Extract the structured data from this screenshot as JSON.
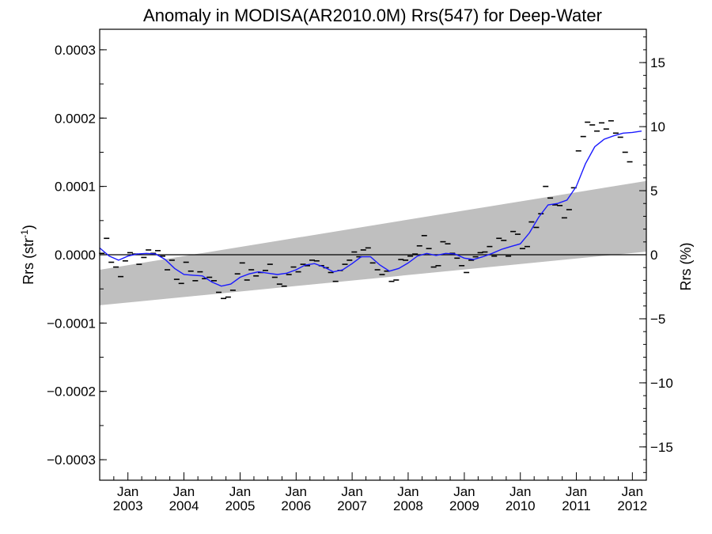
{
  "chart_data": {
    "type": "scatter",
    "title": "Anomaly in MODISA(AR2010.0M) Rrs(547) for Deep-Water",
    "ylabel_left": "Rrs (str",
    "ylabel_left_sup": "-1",
    "ylabel_left_close": ")",
    "ylabel_right": "Rrs (%)",
    "x_range": [
      "2002-07-01",
      "2012-04-01"
    ],
    "ylim_left": [
      -0.00033,
      0.00033
    ],
    "ylim_right": [
      -17.6,
      17.6
    ],
    "left_ticks": [
      {
        "value": 0.0003,
        "label": "0.0003"
      },
      {
        "value": 0.0002,
        "label": "0.0002"
      },
      {
        "value": 0.0001,
        "label": "0.0001"
      },
      {
        "value": 0.0,
        "label": "0.0000"
      },
      {
        "value": -0.0001,
        "label": "−0.0001"
      },
      {
        "value": -0.0002,
        "label": "−0.0002"
      },
      {
        "value": -0.0003,
        "label": "−0.0003"
      }
    ],
    "right_ticks": [
      {
        "value": 15,
        "label": "15"
      },
      {
        "value": 10,
        "label": "10"
      },
      {
        "value": 5,
        "label": "5"
      },
      {
        "value": 0,
        "label": "0"
      },
      {
        "value": -5,
        "label": "−5"
      },
      {
        "value": -10,
        "label": "−10"
      },
      {
        "value": -15,
        "label": "−15"
      }
    ],
    "x_ticks": [
      {
        "date": "2003-01-01",
        "month": "Jan",
        "year": "2003"
      },
      {
        "date": "2004-01-01",
        "month": "Jan",
        "year": "2004"
      },
      {
        "date": "2005-01-01",
        "month": "Jan",
        "year": "2005"
      },
      {
        "date": "2006-01-01",
        "month": "Jan",
        "year": "2006"
      },
      {
        "date": "2007-01-01",
        "month": "Jan",
        "year": "2007"
      },
      {
        "date": "2008-01-01",
        "month": "Jan",
        "year": "2008"
      },
      {
        "date": "2009-01-01",
        "month": "Jan",
        "year": "2009"
      },
      {
        "date": "2010-01-01",
        "month": "Jan",
        "year": "2010"
      },
      {
        "date": "2011-01-01",
        "month": "Jan",
        "year": "2011"
      },
      {
        "date": "2012-01-01",
        "month": "Jan",
        "year": "2012"
      }
    ],
    "band": {
      "start": {
        "date": "2002-07-01",
        "upper": -2.2e-05,
        "lower": -7.4e-05
      },
      "end": {
        "date": "2012-04-01",
        "upper": 0.000108,
        "lower": 4.5e-06
      },
      "color": "#bfbfbf"
    },
    "zero_line": {
      "value": 0.0,
      "color": "#000000"
    },
    "monthly_points": [
      [
        "2002-07-15",
        2e-06
      ],
      [
        "2002-08-15",
        2.4e-05
      ],
      [
        "2002-09-15",
        -1.1e-05
      ],
      [
        "2002-10-15",
        -1.8e-05
      ],
      [
        "2002-11-15",
        -3.2e-05
      ],
      [
        "2002-12-15",
        -9e-06
      ],
      [
        "2003-01-15",
        3e-06
      ],
      [
        "2003-02-15",
        1e-06
      ],
      [
        "2003-03-15",
        -1.4e-05
      ],
      [
        "2003-04-15",
        -4e-06
      ],
      [
        "2003-05-15",
        7e-06
      ],
      [
        "2003-06-15",
        2e-06
      ],
      [
        "2003-07-15",
        6e-06
      ],
      [
        "2003-08-15",
        -2e-06
      ],
      [
        "2003-09-15",
        -2.2e-05
      ],
      [
        "2003-10-15",
        -8e-06
      ],
      [
        "2003-11-15",
        -3.6e-05
      ],
      [
        "2003-12-15",
        -4.2e-05
      ],
      [
        "2004-01-15",
        -1.1e-05
      ],
      [
        "2004-02-15",
        -2.4e-05
      ],
      [
        "2004-03-15",
        -3.8e-05
      ],
      [
        "2004-04-15",
        -2.5e-05
      ],
      [
        "2004-05-15",
        -3.5e-05
      ],
      [
        "2004-06-15",
        -3.3e-05
      ],
      [
        "2004-07-15",
        -3.8e-05
      ],
      [
        "2004-08-15",
        -5.5e-05
      ],
      [
        "2004-09-15",
        -6.4e-05
      ],
      [
        "2004-10-15",
        -6.2e-05
      ],
      [
        "2004-11-15",
        -5.2e-05
      ],
      [
        "2004-12-15",
        -2.8e-05
      ],
      [
        "2005-01-15",
        -1.2e-05
      ],
      [
        "2005-02-15",
        -3.7e-05
      ],
      [
        "2005-03-15",
        -2.2e-05
      ],
      [
        "2005-04-15",
        -3.1e-05
      ],
      [
        "2005-05-15",
        -2.6e-05
      ],
      [
        "2005-06-15",
        -2.3e-05
      ],
      [
        "2005-07-15",
        -1.4e-05
      ],
      [
        "2005-08-15",
        -3.3e-05
      ],
      [
        "2005-09-15",
        -4.3e-05
      ],
      [
        "2005-10-15",
        -4.6e-05
      ],
      [
        "2005-11-15",
        -2.9e-05
      ],
      [
        "2005-12-15",
        -1.8e-05
      ],
      [
        "2006-01-15",
        -2.5e-05
      ],
      [
        "2006-02-15",
        -1.4e-05
      ],
      [
        "2006-03-15",
        -1.6e-05
      ],
      [
        "2006-04-15",
        -8e-06
      ],
      [
        "2006-05-15",
        -9e-06
      ],
      [
        "2006-06-15",
        -1.6e-05
      ],
      [
        "2006-07-15",
        -1.9e-05
      ],
      [
        "2006-08-15",
        -2.6e-05
      ],
      [
        "2006-09-15",
        -3.9e-05
      ],
      [
        "2006-10-15",
        -2.3e-05
      ],
      [
        "2006-11-15",
        -1.4e-05
      ],
      [
        "2006-12-15",
        -8e-06
      ],
      [
        "2007-01-15",
        4e-06
      ],
      [
        "2007-02-15",
        -3e-06
      ],
      [
        "2007-03-15",
        7e-06
      ],
      [
        "2007-04-15",
        1e-05
      ],
      [
        "2007-05-15",
        -1.2e-05
      ],
      [
        "2007-06-15",
        -2.2e-05
      ],
      [
        "2007-07-15",
        -2.9e-05
      ],
      [
        "2007-08-15",
        -2.4e-05
      ],
      [
        "2007-09-15",
        -3.9e-05
      ],
      [
        "2007-10-15",
        -3.7e-05
      ],
      [
        "2007-11-15",
        -7e-06
      ],
      [
        "2007-12-15",
        -8e-06
      ],
      [
        "2008-01-15",
        -2e-06
      ],
      [
        "2008-02-15",
        1e-06
      ],
      [
        "2008-03-15",
        1.3e-05
      ],
      [
        "2008-04-15",
        2.8e-05
      ],
      [
        "2008-05-15",
        9e-06
      ],
      [
        "2008-06-15",
        -1.8e-05
      ],
      [
        "2008-07-15",
        -1.6e-05
      ],
      [
        "2008-08-15",
        1.9e-05
      ],
      [
        "2008-09-15",
        1.6e-05
      ],
      [
        "2008-10-15",
        2e-06
      ],
      [
        "2008-11-15",
        -5e-06
      ],
      [
        "2008-12-15",
        -1.6e-05
      ],
      [
        "2009-01-15",
        -2.6e-05
      ],
      [
        "2009-02-15",
        -8e-06
      ],
      [
        "2009-03-15",
        -3e-06
      ],
      [
        "2009-04-15",
        3e-06
      ],
      [
        "2009-05-15",
        4e-06
      ],
      [
        "2009-06-15",
        1.2e-05
      ],
      [
        "2009-07-15",
        -2e-06
      ],
      [
        "2009-08-15",
        2.4e-05
      ],
      [
        "2009-09-15",
        2.1e-05
      ],
      [
        "2009-10-15",
        -2e-06
      ],
      [
        "2009-11-15",
        3.4e-05
      ],
      [
        "2009-12-15",
        3e-05
      ],
      [
        "2010-01-15",
        9e-06
      ],
      [
        "2010-02-15",
        1.2e-05
      ],
      [
        "2010-03-15",
        4.8e-05
      ],
      [
        "2010-04-15",
        4e-05
      ],
      [
        "2010-05-15",
        6e-05
      ],
      [
        "2010-06-15",
        0.0001
      ],
      [
        "2010-07-15",
        8.3e-05
      ],
      [
        "2010-08-15",
        7.3e-05
      ],
      [
        "2010-09-15",
        7.2e-05
      ],
      [
        "2010-10-15",
        5.4e-05
      ],
      [
        "2010-11-15",
        6.6e-05
      ],
      [
        "2010-12-15",
        9.8e-05
      ],
      [
        "2011-01-15",
        0.000152
      ],
      [
        "2011-02-15",
        0.000173
      ],
      [
        "2011-03-15",
        0.000194
      ],
      [
        "2011-04-15",
        0.00019
      ],
      [
        "2011-05-15",
        0.000181
      ],
      [
        "2011-06-15",
        0.000193
      ],
      [
        "2011-07-15",
        0.000184
      ],
      [
        "2011-08-15",
        0.000196
      ],
      [
        "2011-09-15",
        0.000178
      ],
      [
        "2011-10-15",
        0.000172
      ],
      [
        "2011-11-15",
        0.00015
      ],
      [
        "2011-12-15",
        0.000136
      ]
    ],
    "smoothed_line": {
      "color": "#1a1aff",
      "points": [
        [
          "2002-07-01",
          1e-05
        ],
        [
          "2002-09-01",
          -2e-06
        ],
        [
          "2002-11-01",
          -8e-06
        ],
        [
          "2003-01-01",
          -2e-06
        ],
        [
          "2003-03-01",
          1e-06
        ],
        [
          "2003-05-01",
          2e-06
        ],
        [
          "2003-07-01",
          1e-06
        ],
        [
          "2003-09-01",
          -7e-06
        ],
        [
          "2003-11-01",
          -2e-05
        ],
        [
          "2004-01-01",
          -2.9e-05
        ],
        [
          "2004-03-01",
          -3e-05
        ],
        [
          "2004-05-01",
          -3.1e-05
        ],
        [
          "2004-07-01",
          -4e-05
        ],
        [
          "2004-09-01",
          -4.6e-05
        ],
        [
          "2004-11-01",
          -4.3e-05
        ],
        [
          "2005-01-01",
          -3.3e-05
        ],
        [
          "2005-03-01",
          -2.8e-05
        ],
        [
          "2005-05-01",
          -2.5e-05
        ],
        [
          "2005-07-01",
          -2.7e-05
        ],
        [
          "2005-09-01",
          -2.9e-05
        ],
        [
          "2005-11-01",
          -2.7e-05
        ],
        [
          "2006-01-01",
          -2.2e-05
        ],
        [
          "2006-03-01",
          -1.5e-05
        ],
        [
          "2006-05-01",
          -1.3e-05
        ],
        [
          "2006-07-01",
          -1.8e-05
        ],
        [
          "2006-09-01",
          -2.5e-05
        ],
        [
          "2006-11-01",
          -2.2e-05
        ],
        [
          "2007-01-01",
          -1.3e-05
        ],
        [
          "2007-03-01",
          -3e-06
        ],
        [
          "2007-05-01",
          -3e-06
        ],
        [
          "2007-07-01",
          -1.5e-05
        ],
        [
          "2007-09-01",
          -2.4e-05
        ],
        [
          "2007-11-01",
          -2e-05
        ],
        [
          "2008-01-01",
          -1.2e-05
        ],
        [
          "2008-03-01",
          -2e-06
        ],
        [
          "2008-05-01",
          2e-06
        ],
        [
          "2008-07-01",
          -1e-06
        ],
        [
          "2008-09-01",
          2e-06
        ],
        [
          "2008-11-01",
          1e-06
        ],
        [
          "2009-01-01",
          -5e-06
        ],
        [
          "2009-03-01",
          -7e-06
        ],
        [
          "2009-05-01",
          -3e-06
        ],
        [
          "2009-07-01",
          2e-06
        ],
        [
          "2009-09-01",
          8e-06
        ],
        [
          "2009-11-01",
          1.2e-05
        ],
        [
          "2010-01-01",
          1.6e-05
        ],
        [
          "2010-03-01",
          3.2e-05
        ],
        [
          "2010-05-01",
          5.5e-05
        ],
        [
          "2010-07-01",
          7.3e-05
        ],
        [
          "2010-09-01",
          7.5e-05
        ],
        [
          "2010-11-01",
          8e-05
        ],
        [
          "2011-01-01",
          0.0001
        ],
        [
          "2011-03-01",
          0.000133
        ],
        [
          "2011-05-01",
          0.000158
        ],
        [
          "2011-07-01",
          0.000169
        ],
        [
          "2011-09-01",
          0.000174
        ],
        [
          "2011-11-01",
          0.000178
        ],
        [
          "2012-01-01",
          0.000179
        ],
        [
          "2012-03-01",
          0.000181
        ]
      ]
    }
  }
}
